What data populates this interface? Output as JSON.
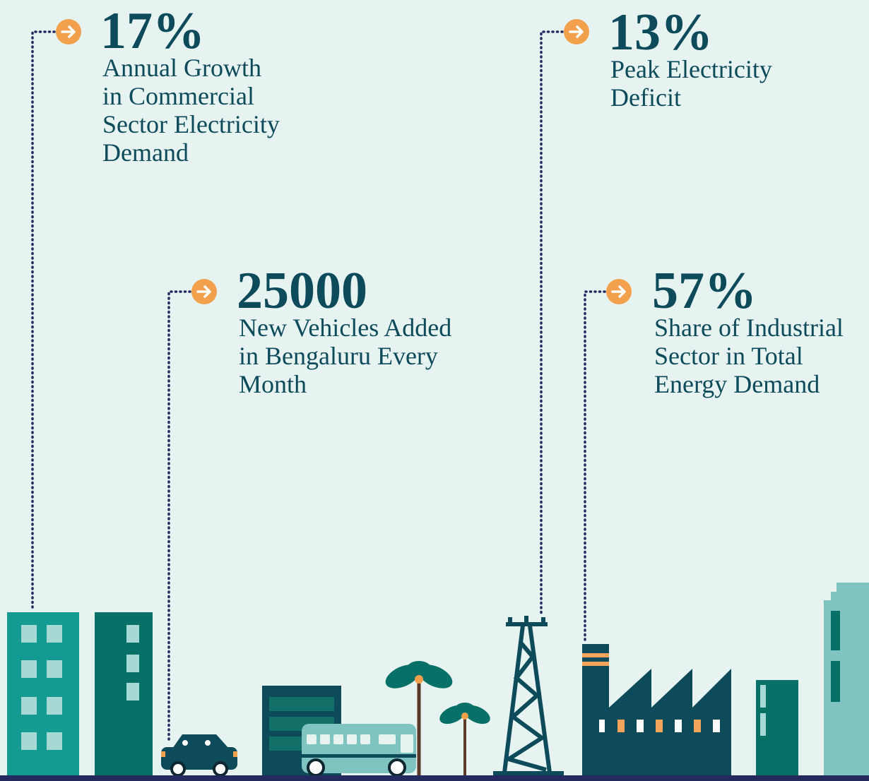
{
  "stats": [
    {
      "value": "17%",
      "label": [
        "Annual Growth",
        "in Commercial",
        "Sector Electricity",
        "Demand"
      ]
    },
    {
      "value": "13%",
      "label": [
        "Peak Electricity",
        "Deficit"
      ]
    },
    {
      "value": "25000",
      "label": [
        "New Vehicles Added",
        "in Bengaluru Every",
        "Month"
      ]
    },
    {
      "value": "57%",
      "label": [
        "Share of Industrial",
        "Sector in Total",
        "Energy Demand"
      ]
    }
  ]
}
